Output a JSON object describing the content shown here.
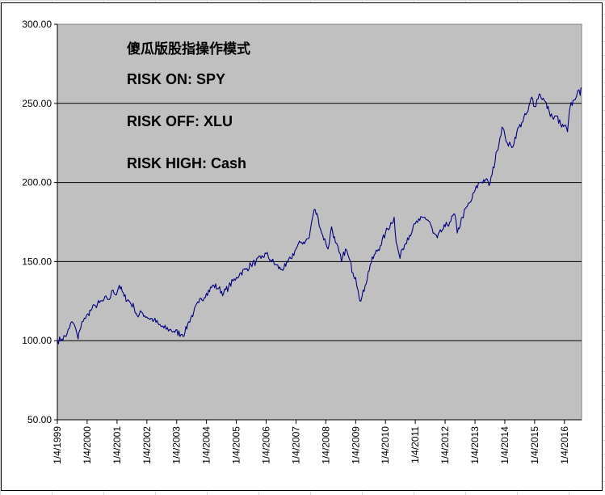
{
  "chart_data": {
    "type": "line",
    "title": "",
    "xlabel": "",
    "ylabel": "",
    "ylim": [
      50,
      300
    ],
    "xlim": [
      "1999-01-04",
      "2016-08-01"
    ],
    "grid": "horizontal",
    "plot_background": "#c0c0c0",
    "line_color": "#000080",
    "y_ticks": [
      "50.00",
      "100.00",
      "150.00",
      "200.00",
      "250.00",
      "300.00"
    ],
    "x_ticks": [
      "1/4/1999",
      "1/4/2000",
      "1/4/2001",
      "1/4/2002",
      "1/4/2003",
      "1/4/2004",
      "1/4/2005",
      "1/4/2006",
      "1/4/2007",
      "1/4/2008",
      "1/4/2009",
      "1/4/2010",
      "1/4/2011",
      "1/4/2012",
      "1/4/2013",
      "1/4/2014",
      "1/4/2015",
      "1/4/2016"
    ],
    "annotations": [
      "傻瓜版股指操作模式",
      "RISK ON: SPY",
      "RISK OFF: XLU",
      "RISK HIGH: Cash"
    ],
    "series": [
      {
        "x": [
          "1999-01-04",
          "1999-03-01",
          "1999-05-01",
          "1999-06-01",
          "1999-07-01",
          "1999-08-01",
          "1999-09-15",
          "1999-10-01",
          "1999-11-01",
          "1999-12-15",
          "2000-01-15",
          "2000-03-01",
          "2000-04-15",
          "2000-06-01",
          "2000-07-15",
          "2000-09-01",
          "2000-10-01",
          "2000-11-15",
          "2000-12-15",
          "2001-02-01",
          "2001-04-01",
          "2001-06-01",
          "2001-08-01",
          "2001-09-20",
          "2001-11-01",
          "2002-01-04",
          "2002-04-01",
          "2002-06-01",
          "2002-08-01",
          "2002-10-10",
          "2002-12-01",
          "2003-03-10",
          "2003-04-15",
          "2003-06-01",
          "2003-08-01",
          "2003-10-01",
          "2004-01-04",
          "2004-04-01",
          "2004-06-01",
          "2004-08-01",
          "2004-10-01",
          "2005-01-04",
          "2005-03-01",
          "2005-05-01",
          "2005-07-01",
          "2005-09-01",
          "2005-11-01",
          "2006-01-04",
          "2006-03-01",
          "2006-05-01",
          "2006-07-01",
          "2006-09-01",
          "2006-11-01",
          "2007-01-04",
          "2007-03-01",
          "2007-05-01",
          "2007-06-15",
          "2007-07-15",
          "2007-08-15",
          "2007-10-01",
          "2007-11-15",
          "2008-01-04",
          "2008-02-01",
          "2008-03-15",
          "2008-05-01",
          "2008-06-15",
          "2008-07-15",
          "2008-09-01",
          "2008-10-15",
          "2008-12-01",
          "2009-01-04",
          "2009-02-01",
          "2009-03-09",
          "2009-05-01",
          "2009-07-01",
          "2009-09-01",
          "2009-11-01",
          "2010-01-04",
          "2010-04-20",
          "2010-05-15",
          "2010-07-01",
          "2010-08-01",
          "2010-10-01",
          "2010-12-01",
          "2011-01-04",
          "2011-03-01",
          "2011-05-01",
          "2011-07-01",
          "2011-08-10",
          "2011-10-01",
          "2011-12-01",
          "2012-01-04",
          "2012-03-01",
          "2012-05-01",
          "2012-06-01",
          "2012-08-01",
          "2012-10-01",
          "2012-11-15",
          "2013-01-04",
          "2013-03-01",
          "2013-05-15",
          "2013-06-25",
          "2013-08-01",
          "2013-10-01",
          "2013-12-01",
          "2014-01-04",
          "2014-02-03",
          "2014-04-01",
          "2014-06-01",
          "2014-08-01",
          "2014-10-15",
          "2014-12-01",
          "2015-01-04",
          "2015-03-01",
          "2015-05-01",
          "2015-07-01",
          "2015-08-25",
          "2015-10-01",
          "2015-12-01",
          "2016-01-04",
          "2016-02-11",
          "2016-03-15",
          "2016-05-01",
          "2016-06-15",
          "2016-07-15",
          "2016-08-01"
        ],
        "y": [
          100,
          101,
          104,
          108,
          112,
          110,
          101,
          106,
          112,
          114,
          117,
          120,
          122,
          124,
          125,
          127,
          126,
          132,
          129,
          135,
          128,
          125,
          121,
          115,
          118,
          115,
          113,
          110,
          108,
          107,
          106,
          104,
          105,
          112,
          118,
          124,
          130,
          135,
          133,
          130,
          134,
          140,
          143,
          145,
          148,
          150,
          152,
          155,
          151,
          148,
          145,
          147,
          152,
          158,
          162,
          163,
          165,
          175,
          183,
          178,
          168,
          162,
          158,
          172,
          162,
          156,
          150,
          158,
          152,
          143,
          140,
          132,
          125,
          135,
          148,
          155,
          160,
          168,
          178,
          162,
          152,
          158,
          165,
          170,
          174,
          176,
          178,
          175,
          168,
          165,
          170,
          172,
          175,
          180,
          168,
          178,
          185,
          188,
          195,
          200,
          202,
          198,
          205,
          220,
          235,
          230,
          225,
          222,
          232,
          238,
          245,
          254,
          248,
          256,
          252,
          245,
          240,
          242,
          235,
          236,
          232,
          248,
          252,
          258,
          255,
          260
        ]
      }
    ]
  }
}
